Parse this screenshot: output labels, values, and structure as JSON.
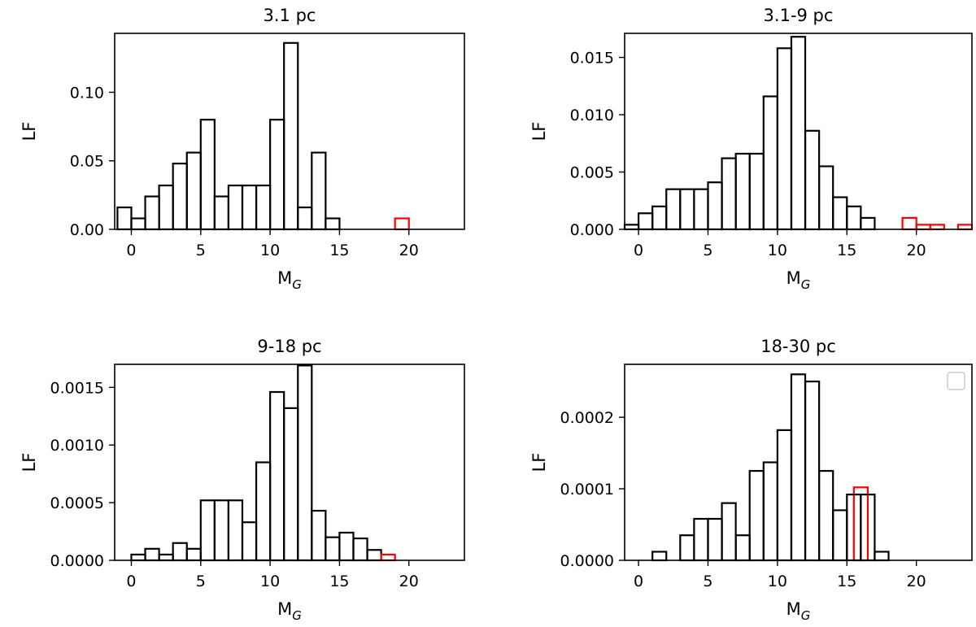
{
  "chart_data": [
    {
      "type": "bar",
      "title": "3.1 pc",
      "xlabel": "M",
      "xlabel_sub": "G",
      "ylabel": "LF",
      "xlim": [
        -1.2,
        24
      ],
      "ylim": [
        0,
        0.143
      ],
      "xticks": [
        0,
        5,
        10,
        15,
        20
      ],
      "xtick_labels": [
        "0",
        "5",
        "10",
        "15",
        "20"
      ],
      "yticks": [
        0,
        0.05,
        0.1
      ],
      "ytick_labels": [
        "0.00",
        "0.05",
        "0.10"
      ],
      "bin_width": 1,
      "series": [
        {
          "name": "black",
          "color": "#000000",
          "x": [
            -1,
            0,
            1,
            2,
            3,
            4,
            5,
            6,
            7,
            8,
            9,
            10,
            11,
            12,
            13,
            14
          ],
          "values": [
            0.016,
            0.008,
            0.024,
            0.032,
            0.048,
            0.056,
            0.08,
            0.024,
            0.032,
            0.032,
            0.032,
            0.08,
            0.136,
            0.016,
            0.056,
            0.008
          ]
        },
        {
          "name": "red",
          "color": "#ff0000",
          "x": [
            19
          ],
          "values": [
            0.008
          ]
        }
      ]
    },
    {
      "type": "bar",
      "title": "3.1-9 pc",
      "xlabel": "M",
      "xlabel_sub": "G",
      "ylabel": "LF",
      "xlim": [
        -1,
        24
      ],
      "ylim": [
        0,
        0.0171
      ],
      "xticks": [
        0,
        5,
        10,
        15,
        20
      ],
      "xtick_labels": [
        "0",
        "5",
        "10",
        "15",
        "20"
      ],
      "yticks": [
        0,
        0.005,
        0.01,
        0.015
      ],
      "ytick_labels": [
        "0.000",
        "0.005",
        "0.010",
        "0.015"
      ],
      "bin_width": 1,
      "series": [
        {
          "name": "black",
          "color": "#000000",
          "x": [
            -1,
            0,
            1,
            2,
            3,
            4,
            5,
            6,
            7,
            8,
            9,
            10,
            11,
            12,
            13,
            14,
            15,
            16
          ],
          "values": [
            0.0004,
            0.0014,
            0.002,
            0.0035,
            0.0035,
            0.0035,
            0.0041,
            0.0062,
            0.0066,
            0.0066,
            0.0116,
            0.0158,
            0.0168,
            0.0086,
            0.0055,
            0.0028,
            0.002,
            0.001
          ]
        },
        {
          "name": "red",
          "color": "#ff0000",
          "x": [
            19,
            20,
            21,
            23
          ],
          "values": [
            0.001,
            0.0004,
            0.0004,
            0.0004
          ]
        }
      ]
    },
    {
      "type": "bar",
      "title": "9-18 pc",
      "xlabel": "M",
      "xlabel_sub": "G",
      "ylabel": "LF",
      "xlim": [
        -1.2,
        24
      ],
      "ylim": [
        0,
        0.0017
      ],
      "xticks": [
        0,
        5,
        10,
        15,
        20
      ],
      "xtick_labels": [
        "0",
        "5",
        "10",
        "15",
        "20"
      ],
      "yticks": [
        0,
        0.0005,
        0.001,
        0.0015
      ],
      "ytick_labels": [
        "0.0000",
        "0.0005",
        "0.0010",
        "0.0015"
      ],
      "bin_width": 1,
      "series": [
        {
          "name": "black",
          "color": "#000000",
          "x": [
            0,
            1,
            2,
            3,
            4,
            5,
            6,
            7,
            8,
            9,
            10,
            11,
            12,
            13,
            14,
            15,
            16,
            17
          ],
          "values": [
            5e-05,
            0.0001,
            5e-05,
            0.00015,
            0.0001,
            0.00052,
            0.00052,
            0.00052,
            0.00033,
            0.00085,
            0.00146,
            0.00132,
            0.00169,
            0.00043,
            0.0002,
            0.00024,
            0.00019,
            9e-05
          ]
        },
        {
          "name": "red",
          "color": "#ff0000",
          "x": [
            18
          ],
          "values": [
            5e-05
          ]
        }
      ]
    },
    {
      "type": "bar",
      "title": "18-30 pc",
      "xlabel": "M",
      "xlabel_sub": "G",
      "ylabel": "LF",
      "xlim": [
        -1,
        24
      ],
      "ylim": [
        0,
        0.000274
      ],
      "xticks": [
        0,
        5,
        10,
        15,
        20
      ],
      "xtick_labels": [
        "0",
        "5",
        "10",
        "15",
        "20"
      ],
      "yticks": [
        0,
        0.0001,
        0.0002
      ],
      "ytick_labels": [
        "0.0000",
        "0.0001",
        "0.0002"
      ],
      "bin_width": 1,
      "legend": "top-right",
      "series": [
        {
          "name": "red",
          "color": "#ff0000",
          "x": [
            15.5
          ],
          "values": [
            0.000102
          ]
        },
        {
          "name": "black",
          "color": "#000000",
          "x": [
            1,
            3,
            4,
            5,
            6,
            7,
            8,
            9,
            10,
            11,
            12,
            13,
            14,
            15,
            16,
            17
          ],
          "values": [
            1.2e-05,
            3.5e-05,
            5.8e-05,
            5.8e-05,
            8e-05,
            3.5e-05,
            0.000125,
            0.000137,
            0.000182,
            0.00026,
            0.00025,
            0.000125,
            7e-05,
            9.2e-05,
            9.2e-05,
            1.2e-05
          ]
        }
      ]
    }
  ]
}
